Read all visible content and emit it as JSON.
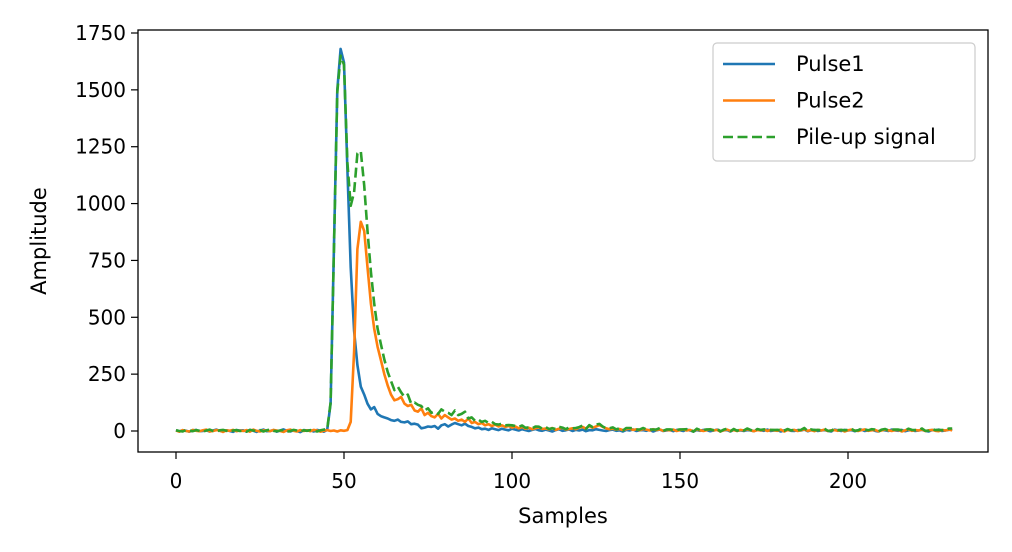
{
  "chart_data": {
    "type": "line",
    "title": "",
    "xlabel": "Samples",
    "ylabel": "Amplitude",
    "xlim": [
      -11,
      242
    ],
    "ylim": [
      -95,
      1760
    ],
    "xticks": [
      0,
      50,
      100,
      150,
      200
    ],
    "yticks": [
      0,
      250,
      500,
      750,
      1000,
      1250,
      1500,
      1750
    ],
    "grid": false,
    "legend_position": "top-right",
    "series": [
      {
        "name": "Pulse1",
        "color": "#1f77b4",
        "style": "solid",
        "values": [
          4,
          -2,
          3,
          1,
          -3,
          2,
          5,
          -1,
          0,
          3,
          -2,
          2,
          6,
          1,
          -2,
          3,
          0,
          -4,
          4,
          2,
          3,
          -2,
          5,
          1,
          -4,
          2,
          6,
          -1,
          0,
          4,
          -3,
          2,
          7,
          1,
          -2,
          3,
          0,
          -5,
          4,
          2,
          3,
          -2,
          5,
          1,
          -3,
          5,
          120,
          800,
          1500,
          1680,
          1620,
          1150,
          720,
          440,
          290,
          195,
          160,
          120,
          95,
          105,
          75,
          65,
          60,
          55,
          48,
          45,
          50,
          40,
          38,
          42,
          30,
          32,
          28,
          12,
          15,
          20,
          18,
          22,
          10,
          25,
          30,
          20,
          28,
          35,
          30,
          25,
          32,
          22,
          18,
          12,
          15,
          8,
          10,
          5,
          12,
          8,
          4,
          10,
          6,
          3,
          10,
          6,
          2,
          8,
          4,
          0,
          5,
          9,
          3,
          1,
          6,
          2,
          -2,
          4,
          8,
          1,
          3,
          7,
          0,
          5,
          2,
          6,
          -1,
          4,
          3,
          8,
          5,
          2,
          0,
          4,
          6,
          1,
          3,
          -2,
          5,
          2,
          7,
          0,
          3,
          4,
          1,
          5,
          -2,
          3,
          6,
          0,
          2,
          4,
          -1,
          5,
          3,
          0,
          6,
          2,
          -2,
          4,
          1,
          5,
          3,
          -1,
          2,
          6,
          0,
          3,
          4,
          -2,
          5,
          1,
          3,
          0,
          4,
          2,
          -1,
          5,
          3,
          1,
          6,
          0,
          2,
          4,
          -2,
          3,
          5,
          1,
          0,
          4,
          2,
          6,
          -1,
          3,
          5,
          0,
          2,
          4,
          1,
          -2,
          6,
          3,
          0,
          5,
          2,
          4,
          -1,
          3,
          6,
          0,
          2,
          5,
          1,
          -2,
          4,
          3,
          0,
          6,
          2,
          1,
          5,
          -1,
          3,
          4,
          0,
          2,
          5,
          1,
          -2,
          4,
          3,
          6,
          0,
          2,
          5,
          8
        ]
      },
      {
        "name": "Pulse2",
        "color": "#ff7f0e",
        "style": "solid",
        "values": [
          2,
          -3,
          4,
          0,
          -2,
          5,
          1,
          -1,
          3,
          6,
          -2,
          0,
          4,
          2,
          -4,
          3,
          1,
          5,
          -1,
          2,
          0,
          4,
          -3,
          6,
          1,
          -2,
          3,
          2,
          -1,
          5,
          2,
          0,
          -4,
          3,
          6,
          1,
          -2,
          4,
          0,
          3,
          -1,
          5,
          2,
          -3,
          1,
          4,
          0,
          2,
          -2,
          3,
          1,
          4,
          40,
          350,
          800,
          920,
          880,
          720,
          560,
          450,
          370,
          310,
          250,
          200,
          160,
          135,
          140,
          150,
          120,
          110,
          115,
          90,
          85,
          100,
          70,
          80,
          65,
          60,
          75,
          55,
          70,
          60,
          50,
          55,
          45,
          50,
          40,
          55,
          35,
          40,
          30,
          35,
          25,
          30,
          22,
          28,
          20,
          25,
          18,
          22,
          15,
          20,
          12,
          18,
          10,
          14,
          8,
          12,
          16,
          9,
          11,
          7,
          13,
          5,
          10,
          14,
          6,
          9,
          12,
          8,
          15,
          18,
          10,
          22,
          14,
          20,
          26,
          18,
          12,
          8,
          10,
          6,
          9,
          4,
          8,
          11,
          5,
          7,
          3,
          9,
          6,
          2,
          8,
          4,
          7,
          1,
          5,
          3,
          6,
          0,
          4,
          7,
          2,
          5,
          -1,
          6,
          3,
          0,
          4,
          8,
          2,
          5,
          -2,
          3,
          6,
          1,
          4,
          0,
          5,
          2,
          7,
          3,
          -1,
          4,
          2,
          6,
          0,
          5,
          3,
          1,
          6,
          -2,
          4,
          2,
          5,
          0,
          3,
          7,
          1,
          4,
          -1,
          5,
          2,
          6,
          0,
          3,
          4,
          1,
          5,
          -2,
          3,
          6,
          2,
          0,
          4,
          7,
          1,
          3,
          5,
          -1,
          2,
          6,
          3,
          0,
          4,
          5,
          -2,
          3,
          7,
          1,
          4,
          2,
          6,
          0,
          3,
          5,
          1,
          -1,
          4,
          2,
          6,
          3
        ]
      },
      {
        "name": "Pile-up signal",
        "color": "#2ca02c",
        "style": "dashed",
        "values": [
          3,
          0,
          -2,
          5,
          2,
          -1,
          4,
          1,
          -3,
          2,
          6,
          0,
          -2,
          3,
          5,
          1,
          -4,
          2,
          4,
          0,
          1,
          -3,
          5,
          2,
          0,
          4,
          -2,
          3,
          6,
          1,
          -1,
          2,
          4,
          -3,
          0,
          5,
          2,
          -2,
          3,
          1,
          4,
          0,
          -2,
          3,
          6,
          8,
          125,
          790,
          1490,
          1650,
          1610,
          1180,
          990,
          1050,
          1220,
          1230,
          1080,
          880,
          700,
          560,
          450,
          380,
          315,
          260,
          220,
          180,
          195,
          170,
          150,
          160,
          120,
          125,
          115,
          110,
          90,
          100,
          80,
          85,
          75,
          95,
          85,
          80,
          70,
          90,
          70,
          75,
          85,
          55,
          60,
          45,
          50,
          40,
          45,
          35,
          40,
          30,
          28,
          32,
          25,
          26,
          25,
          22,
          18,
          24,
          14,
          16,
          12,
          20,
          19,
          10,
          17,
          9,
          12,
          9,
          18,
          15,
          8,
          16,
          12,
          13,
          17,
          24,
          9,
          26,
          17,
          28,
          31,
          20,
          12,
          12,
          16,
          7,
          12,
          2,
          13,
          13,
          12,
          7,
          6,
          13,
          7,
          7,
          6,
          7,
          13,
          1,
          7,
          7,
          5,
          5,
          7,
          7,
          8,
          7,
          -3,
          10,
          4,
          5,
          7,
          7,
          4,
          11,
          -2,
          6,
          10,
          -1,
          9,
          1,
          8,
          2,
          11,
          5,
          -2,
          9,
          5,
          7,
          6,
          5,
          5,
          5,
          4,
          1,
          9,
          3,
          5,
          4,
          5,
          13,
          0,
          7,
          4,
          5,
          4,
          10,
          1,
          1,
          10,
          4,
          5,
          3,
          5,
          10,
          1,
          3,
          10,
          7,
          3,
          8,
          6,
          -3,
          6,
          9,
          3,
          6,
          6,
          6,
          3,
          2,
          10,
          5,
          4,
          4,
          11,
          1,
          1,
          9,
          4,
          5,
          4,
          4,
          11,
          11
        ]
      }
    ]
  }
}
